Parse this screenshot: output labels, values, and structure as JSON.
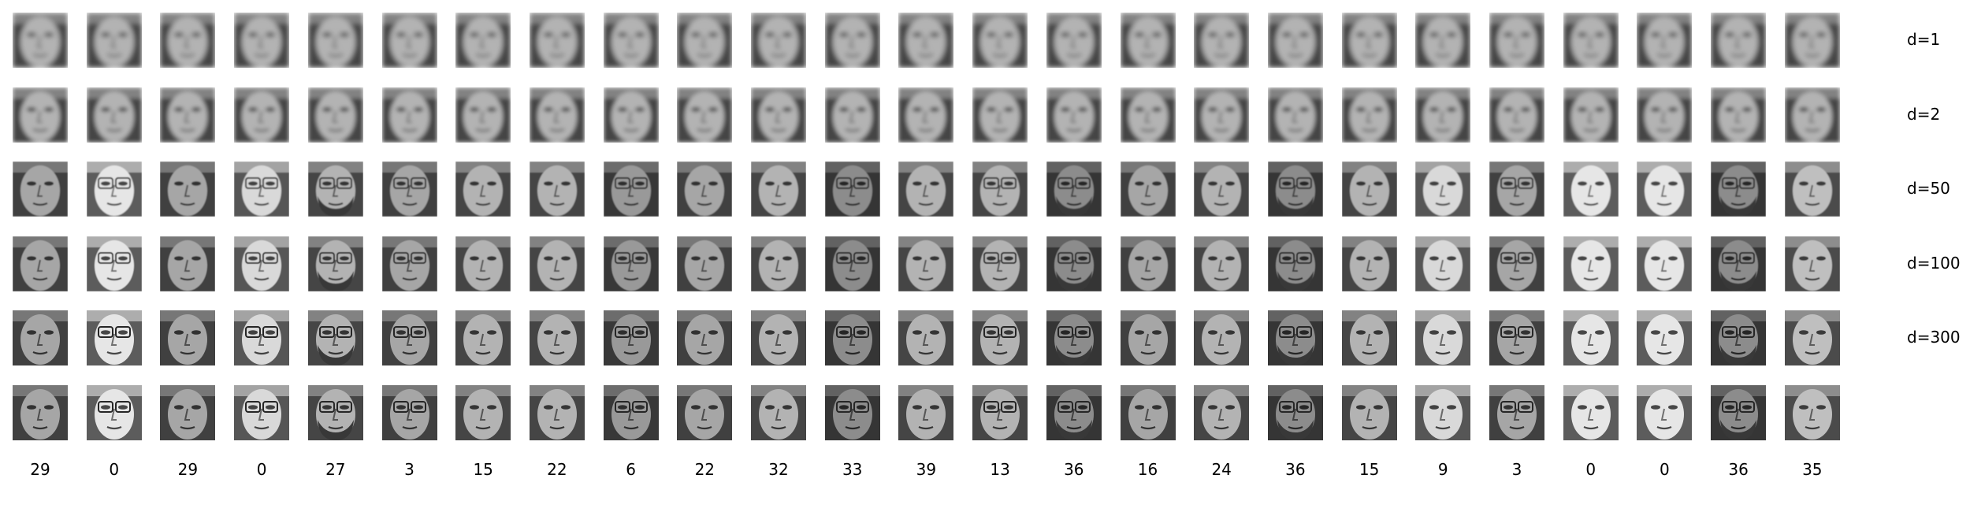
{
  "rows": [
    {
      "label": "d=1"
    },
    {
      "label": "d=2"
    },
    {
      "label": "d=50"
    },
    {
      "label": "d=100"
    },
    {
      "label": "d=300"
    },
    {
      "label": ""
    }
  ],
  "columns": [
    "29",
    "0",
    "29",
    "0",
    "27",
    "3",
    "15",
    "22",
    "6",
    "22",
    "32",
    "33",
    "39",
    "13",
    "36",
    "16",
    "24",
    "36",
    "15",
    "9",
    "3",
    "0",
    "0",
    "36",
    "35"
  ],
  "glasses": [
    false,
    true,
    false,
    true,
    true,
    true,
    false,
    false,
    true,
    false,
    false,
    true,
    false,
    true,
    true,
    false,
    false,
    true,
    false,
    false,
    true,
    false,
    false,
    true,
    false
  ],
  "beard": [
    false,
    false,
    false,
    false,
    true,
    false,
    false,
    false,
    false,
    false,
    false,
    false,
    false,
    false,
    true,
    false,
    false,
    true,
    false,
    false,
    false,
    false,
    false,
    true,
    false
  ],
  "brightness": [
    0.55,
    0.8,
    0.55,
    0.75,
    0.6,
    0.55,
    0.6,
    0.6,
    0.5,
    0.55,
    0.6,
    0.45,
    0.6,
    0.6,
    0.45,
    0.55,
    0.6,
    0.45,
    0.6,
    0.75,
    0.55,
    0.8,
    0.8,
    0.45,
    0.65
  ]
}
